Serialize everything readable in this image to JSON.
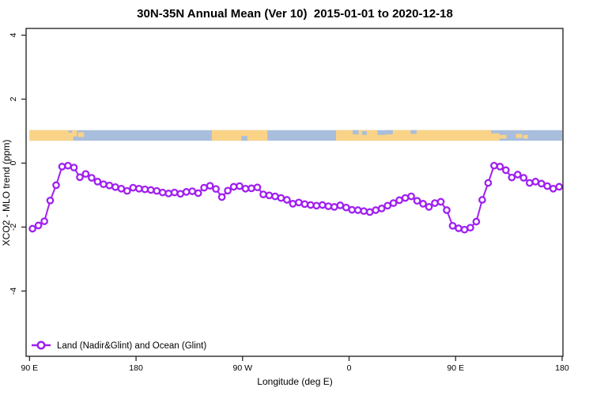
{
  "page": {
    "background": "#ffffff"
  },
  "chart_data": {
    "type": "line",
    "title": "30N-35N Annual Mean (Ver 10)  2015-01-01 to 2020-12-18",
    "xlabel": "Longitude (deg E)",
    "ylabel": "XCO2 - MLO trend (ppm)",
    "xlim": [
      87.1,
      540.7
    ],
    "ylim": [
      -6.04,
      4.21
    ],
    "grid": false,
    "x_ticks": [
      {
        "v": 90,
        "label": "90 E"
      },
      {
        "v": 180,
        "label": "180"
      },
      {
        "v": 270,
        "label": "90 W"
      },
      {
        "v": 360,
        "label": "0"
      },
      {
        "v": 450,
        "label": "90 E"
      },
      {
        "v": 540,
        "label": "180"
      }
    ],
    "y_ticks": [
      {
        "v": 4,
        "label": "4"
      },
      {
        "v": 2,
        "label": "2"
      },
      {
        "v": 0,
        "label": "0"
      },
      {
        "v": -2,
        "label": "-2"
      },
      {
        "v": -4,
        "label": "-4"
      }
    ],
    "legend": {
      "position": "bottom-left"
    },
    "series": [
      {
        "name": "Land (Nadir&Glint) and Ocean (Glint)",
        "color": "#A020F0",
        "marker": "open-circle",
        "x": [
          92.5,
          97.5,
          102.5,
          107.5,
          112.5,
          117.5,
          122.5,
          127.5,
          132.5,
          137.5,
          142.5,
          147.5,
          152.5,
          157.5,
          162.5,
          167.5,
          172.5,
          177.5,
          182.5,
          187.5,
          192.5,
          197.5,
          202.5,
          207.5,
          212.5,
          217.5,
          222.5,
          227.5,
          232.5,
          237.5,
          242.5,
          247.5,
          252.5,
          257.5,
          262.5,
          267.5,
          272.5,
          277.5,
          282.5,
          287.5,
          292.5,
          297.5,
          302.5,
          307.5,
          312.5,
          317.5,
          322.5,
          327.5,
          332.5,
          337.5,
          342.5,
          347.5,
          352.5,
          357.5,
          362.5,
          367.5,
          372.5,
          377.5,
          382.5,
          387.5,
          392.5,
          397.5,
          402.5,
          407.5,
          412.5,
          417.5,
          422.5,
          427.5,
          432.5,
          437.5,
          442.5,
          447.5,
          452.5,
          457.5,
          462.5,
          467.5,
          472.5,
          477.5,
          482.5,
          487.5,
          492.5,
          497.5,
          502.5,
          507.5,
          512.5,
          517.5,
          522.5,
          527.5,
          532.5,
          537.5
        ],
        "y": [
          -2.05,
          -1.95,
          -1.82,
          -1.17,
          -0.69,
          -0.11,
          -0.08,
          -0.14,
          -0.44,
          -0.34,
          -0.46,
          -0.58,
          -0.66,
          -0.7,
          -0.75,
          -0.8,
          -0.87,
          -0.77,
          -0.8,
          -0.82,
          -0.84,
          -0.87,
          -0.92,
          -0.95,
          -0.92,
          -0.96,
          -0.9,
          -0.88,
          -0.94,
          -0.77,
          -0.71,
          -0.81,
          -1.06,
          -0.86,
          -0.74,
          -0.72,
          -0.8,
          -0.79,
          -0.76,
          -0.98,
          -1.01,
          -1.04,
          -1.09,
          -1.15,
          -1.27,
          -1.23,
          -1.28,
          -1.31,
          -1.33,
          -1.31,
          -1.35,
          -1.37,
          -1.32,
          -1.39,
          -1.46,
          -1.47,
          -1.5,
          -1.53,
          -1.47,
          -1.42,
          -1.33,
          -1.25,
          -1.16,
          -1.09,
          -1.04,
          -1.18,
          -1.27,
          -1.37,
          -1.25,
          -1.21,
          -1.47,
          -1.96,
          -2.04,
          -2.08,
          -2.02,
          -1.83,
          -1.15,
          -0.62,
          -0.08,
          -0.11,
          -0.22,
          -0.45,
          -0.36,
          -0.46,
          -0.62,
          -0.58,
          -0.64,
          -0.72,
          -0.8,
          -0.74
        ]
      }
    ],
    "map_band": {
      "x_range_deg": [
        90,
        540
      ],
      "y_range_ppm": [
        0.7,
        1.03
      ],
      "ocean_color": "#A9BEDC",
      "land_color": "#FAD387",
      "land_segments": [
        [
          90,
          123,
          0,
          1
        ],
        [
          123,
          127,
          0.25,
          1
        ],
        [
          126,
          130,
          0,
          0.6
        ],
        [
          131,
          136,
          0.2,
          0.65
        ],
        [
          244,
          291,
          0,
          1
        ],
        [
          349,
          384,
          0,
          1
        ],
        [
          384,
          391,
          0.45,
          1
        ],
        [
          391,
          480,
          0,
          1
        ],
        [
          480,
          487,
          0.3,
          1
        ],
        [
          487,
          493,
          0.45,
          0.8
        ],
        [
          501,
          506,
          0.35,
          0.75
        ],
        [
          507,
          511,
          0.45,
          0.8
        ]
      ],
      "ocean_patches": [
        [
          269,
          274,
          0.55,
          1
        ],
        [
          363,
          368,
          0,
          0.4
        ],
        [
          371,
          375,
          0.1,
          0.45
        ],
        [
          391,
          397,
          0,
          0.4
        ],
        [
          412,
          417,
          0,
          0.35
        ]
      ]
    }
  }
}
